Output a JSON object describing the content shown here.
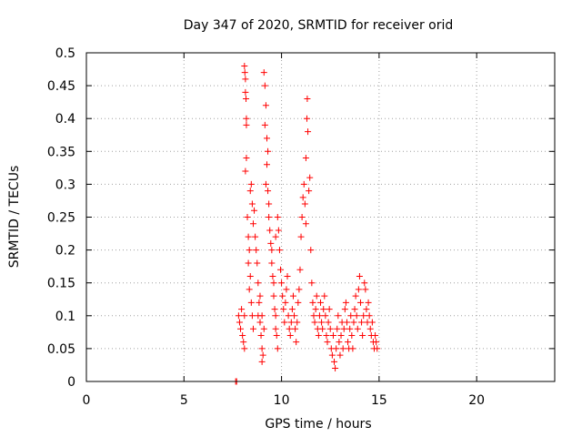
{
  "chart_data": {
    "type": "scatter",
    "title": "Day 347 of 2020, SRMTID for receiver orid",
    "xlabel": "GPS time / hours",
    "ylabel": "SRMTID / TECUs",
    "xlim": [
      0,
      24
    ],
    "ylim": [
      0,
      0.5
    ],
    "xticks": [
      0,
      5,
      10,
      15,
      20
    ],
    "yticks": [
      0,
      0.05,
      0.1,
      0.15,
      0.2,
      0.25,
      0.3,
      0.35,
      0.4,
      0.45,
      0.5
    ],
    "xtick_labels": [
      "0",
      "5",
      "10",
      "15",
      "20"
    ],
    "ytick_labels": [
      "0",
      "0.05",
      "0.1",
      "0.15",
      "0.2",
      "0.25",
      "0.3",
      "0.35",
      "0.4",
      "0.45",
      "0.5"
    ],
    "grid": true,
    "marker": "+",
    "color": "#ff0000",
    "series": [
      {
        "name": "SRMTID",
        "points": [
          [
            7.65,
            0.0
          ],
          [
            7.7,
            0.0
          ],
          [
            7.8,
            0.1
          ],
          [
            7.85,
            0.09
          ],
          [
            7.9,
            0.08
          ],
          [
            7.95,
            0.11
          ],
          [
            8.0,
            0.07
          ],
          [
            8.05,
            0.06
          ],
          [
            8.1,
            0.1
          ],
          [
            8.1,
            0.05
          ],
          [
            8.1,
            0.48
          ],
          [
            8.12,
            0.47
          ],
          [
            8.15,
            0.46
          ],
          [
            8.15,
            0.44
          ],
          [
            8.18,
            0.43
          ],
          [
            8.2,
            0.4
          ],
          [
            8.2,
            0.39
          ],
          [
            8.15,
            0.32
          ],
          [
            8.2,
            0.34
          ],
          [
            8.25,
            0.25
          ],
          [
            8.3,
            0.22
          ],
          [
            8.35,
            0.2
          ],
          [
            8.3,
            0.18
          ],
          [
            8.4,
            0.16
          ],
          [
            8.35,
            0.14
          ],
          [
            8.45,
            0.12
          ],
          [
            8.5,
            0.1
          ],
          [
            8.55,
            0.08
          ],
          [
            8.4,
            0.29
          ],
          [
            8.45,
            0.3
          ],
          [
            8.5,
            0.27
          ],
          [
            8.55,
            0.24
          ],
          [
            8.6,
            0.26
          ],
          [
            8.65,
            0.22
          ],
          [
            8.7,
            0.2
          ],
          [
            8.75,
            0.18
          ],
          [
            8.8,
            0.15
          ],
          [
            8.85,
            0.12
          ],
          [
            8.8,
            0.1
          ],
          [
            8.9,
            0.09
          ],
          [
            8.95,
            0.07
          ],
          [
            9.0,
            0.05
          ],
          [
            9.05,
            0.04
          ],
          [
            9.0,
            0.1
          ],
          [
            8.9,
            0.13
          ],
          [
            9.1,
            0.08
          ],
          [
            9.0,
            0.03
          ],
          [
            9.1,
            0.47
          ],
          [
            9.15,
            0.45
          ],
          [
            9.2,
            0.42
          ],
          [
            9.15,
            0.39
          ],
          [
            9.25,
            0.37
          ],
          [
            9.3,
            0.35
          ],
          [
            9.25,
            0.33
          ],
          [
            9.2,
            0.3
          ],
          [
            9.3,
            0.29
          ],
          [
            9.35,
            0.27
          ],
          [
            9.35,
            0.25
          ],
          [
            9.4,
            0.23
          ],
          [
            9.45,
            0.21
          ],
          [
            9.5,
            0.2
          ],
          [
            9.5,
            0.18
          ],
          [
            9.55,
            0.16
          ],
          [
            9.6,
            0.15
          ],
          [
            9.6,
            0.13
          ],
          [
            9.65,
            0.11
          ],
          [
            9.7,
            0.1
          ],
          [
            9.7,
            0.08
          ],
          [
            9.75,
            0.07
          ],
          [
            9.8,
            0.05
          ],
          [
            9.7,
            0.22
          ],
          [
            9.8,
            0.25
          ],
          [
            9.85,
            0.23
          ],
          [
            9.9,
            0.2
          ],
          [
            9.95,
            0.17
          ],
          [
            10.0,
            0.15
          ],
          [
            10.05,
            0.13
          ],
          [
            10.1,
            0.11
          ],
          [
            10.15,
            0.09
          ],
          [
            10.2,
            0.12
          ],
          [
            10.25,
            0.14
          ],
          [
            10.3,
            0.16
          ],
          [
            10.35,
            0.1
          ],
          [
            10.4,
            0.08
          ],
          [
            10.45,
            0.07
          ],
          [
            10.5,
            0.09
          ],
          [
            10.55,
            0.11
          ],
          [
            10.6,
            0.13
          ],
          [
            10.65,
            0.1
          ],
          [
            10.7,
            0.08
          ],
          [
            10.75,
            0.06
          ],
          [
            10.8,
            0.09
          ],
          [
            10.85,
            0.12
          ],
          [
            10.9,
            0.14
          ],
          [
            10.95,
            0.17
          ],
          [
            11.0,
            0.22
          ],
          [
            11.05,
            0.25
          ],
          [
            11.1,
            0.28
          ],
          [
            11.15,
            0.3
          ],
          [
            11.2,
            0.27
          ],
          [
            11.25,
            0.24
          ],
          [
            11.25,
            0.34
          ],
          [
            11.3,
            0.4
          ],
          [
            11.32,
            0.43
          ],
          [
            11.35,
            0.38
          ],
          [
            11.4,
            0.29
          ],
          [
            11.45,
            0.31
          ],
          [
            11.5,
            0.2
          ],
          [
            11.55,
            0.15
          ],
          [
            11.6,
            0.12
          ],
          [
            11.65,
            0.1
          ],
          [
            11.7,
            0.09
          ],
          [
            11.75,
            0.11
          ],
          [
            11.8,
            0.13
          ],
          [
            11.85,
            0.08
          ],
          [
            11.9,
            0.07
          ],
          [
            11.95,
            0.1
          ],
          [
            12.0,
            0.12
          ],
          [
            12.05,
            0.09
          ],
          [
            12.1,
            0.08
          ],
          [
            12.15,
            0.11
          ],
          [
            12.2,
            0.13
          ],
          [
            12.25,
            0.1
          ],
          [
            12.3,
            0.07
          ],
          [
            12.35,
            0.06
          ],
          [
            12.4,
            0.09
          ],
          [
            12.45,
            0.11
          ],
          [
            12.5,
            0.08
          ],
          [
            12.55,
            0.05
          ],
          [
            12.6,
            0.04
          ],
          [
            12.65,
            0.07
          ],
          [
            12.7,
            0.03
          ],
          [
            12.75,
            0.02
          ],
          [
            12.8,
            0.05
          ],
          [
            12.85,
            0.08
          ],
          [
            12.9,
            0.1
          ],
          [
            12.95,
            0.06
          ],
          [
            13.0,
            0.04
          ],
          [
            13.05,
            0.07
          ],
          [
            13.1,
            0.09
          ],
          [
            13.15,
            0.05
          ],
          [
            13.2,
            0.08
          ],
          [
            13.25,
            0.11
          ],
          [
            13.3,
            0.12
          ],
          [
            13.35,
            0.09
          ],
          [
            13.4,
            0.06
          ],
          [
            13.45,
            0.05
          ],
          [
            13.5,
            0.08
          ],
          [
            13.55,
            0.1
          ],
          [
            13.6,
            0.07
          ],
          [
            13.65,
            0.05
          ],
          [
            13.7,
            0.09
          ],
          [
            13.75,
            0.11
          ],
          [
            13.8,
            0.13
          ],
          [
            13.85,
            0.1
          ],
          [
            13.9,
            0.08
          ],
          [
            13.95,
            0.14
          ],
          [
            14.0,
            0.16
          ],
          [
            14.05,
            0.12
          ],
          [
            14.1,
            0.09
          ],
          [
            14.15,
            0.07
          ],
          [
            14.2,
            0.1
          ],
          [
            14.25,
            0.15
          ],
          [
            14.3,
            0.14
          ],
          [
            14.35,
            0.11
          ],
          [
            14.4,
            0.09
          ],
          [
            14.45,
            0.12
          ],
          [
            14.5,
            0.1
          ],
          [
            14.55,
            0.08
          ],
          [
            14.6,
            0.07
          ],
          [
            14.65,
            0.09
          ],
          [
            14.7,
            0.06
          ],
          [
            14.75,
            0.05
          ],
          [
            14.8,
            0.07
          ],
          [
            14.85,
            0.06
          ],
          [
            14.9,
            0.05
          ]
        ]
      }
    ]
  }
}
